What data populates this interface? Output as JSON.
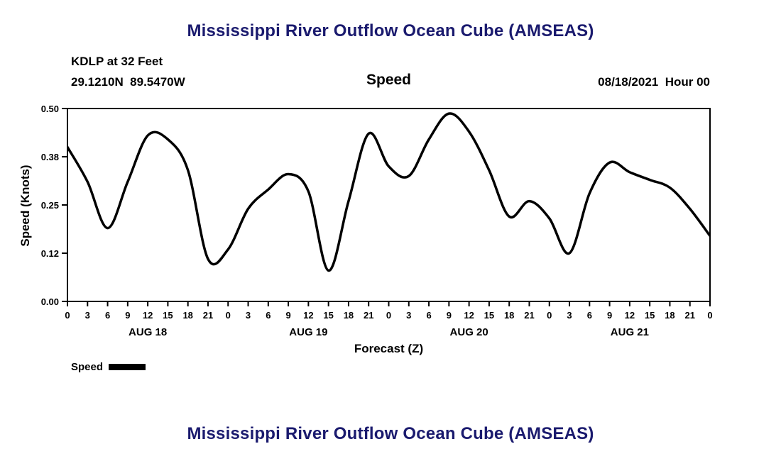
{
  "page": {
    "title_top": "Mississippi River Outflow Ocean Cube (AMSEAS)",
    "title_bottom": "Mississippi River Outflow Ocean Cube (AMSEAS)"
  },
  "header": {
    "station": "KDLP at 32 Feet",
    "coordinates": "29.1210N  89.5470W",
    "plot_label": "Speed",
    "datetime": "08/18/2021  Hour 00"
  },
  "axes": {
    "ylabel": "Speed (Knots)",
    "xlabel": "Forecast (Z)"
  },
  "legend": {
    "label": "Speed"
  },
  "colors": {
    "title": "#1a1a6e",
    "line": "#000000",
    "axis": "#000000",
    "background": "#ffffff"
  },
  "chart_data": {
    "type": "line",
    "title": "Speed",
    "xlabel": "Forecast (Z)",
    "ylabel": "Speed (Knots)",
    "xlim": [
      0,
      96
    ],
    "ylim": [
      0.0,
      0.5
    ],
    "grid": false,
    "legend_position": "bottom-left",
    "yticks": [
      {
        "value": 0.0,
        "label": "0.00"
      },
      {
        "value": 0.125,
        "label": "0.12"
      },
      {
        "value": 0.25,
        "label": "0.25"
      },
      {
        "value": 0.375,
        "label": "0.38"
      },
      {
        "value": 0.5,
        "label": "0.50"
      }
    ],
    "xtick_values": [
      0,
      3,
      6,
      9,
      12,
      15,
      18,
      21,
      24,
      27,
      30,
      33,
      36,
      39,
      42,
      45,
      48,
      51,
      54,
      57,
      60,
      63,
      66,
      69,
      72,
      75,
      78,
      81,
      84,
      87,
      90,
      93,
      96
    ],
    "xtick_labels": [
      "0",
      "3",
      "6",
      "9",
      "12",
      "15",
      "18",
      "21",
      "0",
      "3",
      "6",
      "9",
      "12",
      "15",
      "18",
      "21",
      "0",
      "3",
      "6",
      "9",
      "12",
      "15",
      "18",
      "21",
      "0",
      "3",
      "6",
      "9",
      "12",
      "15",
      "18",
      "21",
      "0"
    ],
    "day_labels": [
      {
        "label": "AUG 18",
        "center_hour": 12
      },
      {
        "label": "AUG 19",
        "center_hour": 36
      },
      {
        "label": "AUG 20",
        "center_hour": 60
      },
      {
        "label": "AUG 21",
        "center_hour": 84
      }
    ],
    "x_hours": [
      0,
      3,
      6,
      9,
      12,
      15,
      18,
      21,
      24,
      27,
      30,
      33,
      36,
      39,
      42,
      45,
      48,
      51,
      54,
      57,
      60,
      63,
      66,
      69,
      72,
      75,
      78,
      81,
      84,
      87,
      90,
      93,
      96
    ],
    "series": [
      {
        "name": "Speed",
        "values": [
          0.4,
          0.31,
          0.19,
          0.31,
          0.43,
          0.42,
          0.34,
          0.11,
          0.135,
          0.24,
          0.29,
          0.33,
          0.285,
          0.08,
          0.26,
          0.435,
          0.35,
          0.325,
          0.42,
          0.487,
          0.44,
          0.34,
          0.22,
          0.26,
          0.215,
          0.125,
          0.28,
          0.36,
          0.335,
          0.315,
          0.295,
          0.24,
          0.17
        ]
      }
    ]
  }
}
